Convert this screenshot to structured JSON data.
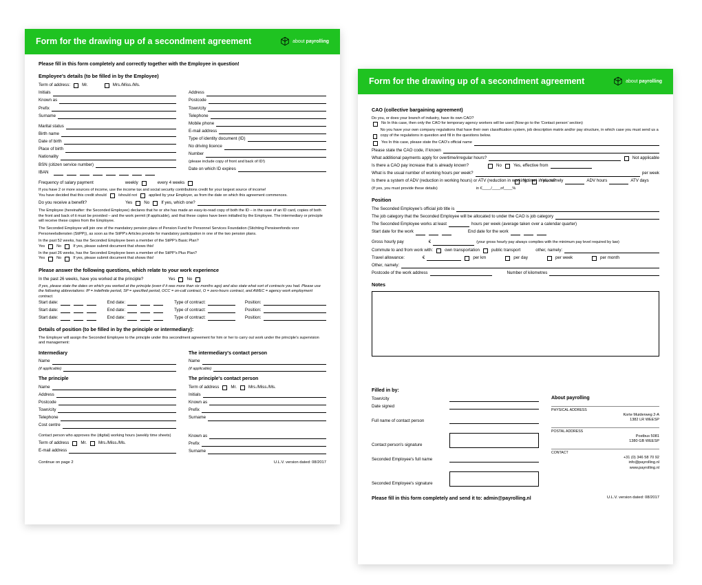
{
  "brand": {
    "prefix": "about",
    "name": "payrolling"
  },
  "form_title": "Form for the drawing up of a secondment agreement",
  "version": "U.L.V. version dated: 08/2017",
  "page1": {
    "instruction": "Please fill in this form completely and correctly together with the Employee in question!",
    "s1": {
      "heading": "Employee's details (to be filled in by the Employee)",
      "term_of_address": "Term of address:",
      "mr": "Mr.",
      "mrs": "Mrs./Miss./Ms.",
      "left": [
        "Initials",
        "Known as",
        "Prefix",
        "Surname",
        "",
        "Marital status",
        "Birth name",
        "Date of birth",
        "Place of birth",
        "Nationality",
        "BSN (citizen service number)",
        "IBAN"
      ],
      "right": [
        "Address",
        "Postcode",
        "Town/city",
        "Telephone",
        "Mobile phone",
        "E-mail address",
        "Type of identity document (ID)",
        "No driving licence",
        "Number",
        "(please include copy of front and back of ID!)",
        "Date on which ID expires"
      ],
      "freq": "Frequency of salary payment",
      "weekly": "weekly",
      "every4": "every 4 weeks",
      "p1": "If you have 2 or more sources of income, use the income tax and social security contributions credit for your largest source of income!",
      "p2a": "You have decided that this credit should",
      "p2b": "/should not",
      "p2c": "applied by your Employer, as from the date on which this agreement commences.",
      "benefit": "Do you receive a benefit?",
      "yes": "Yes",
      "no": "No",
      "ifyes": "If yes, which one?",
      "decl": "The Employee (hereinafter: the Seconded Employee) declares that he or she has made an easy-to-read copy of both the ID – in the case of an ID card, copies of both the front and back of it must be provided – and the work permit (if applicable), and that these copies have been initialled by the Employee. The intermediary or principle will receive these copies from the Employee.",
      "pension": "The Seconded Employee will join one of the mandatory pension plans of Pension Fund for Personnel Services Foundation (Stichting Pensioenfonds voor Personeelsdiensten (StiPP)), as soon as the StiPP's Articles provide for mandatory participation in one of the two pension plans.",
      "q52": "In the past 52 weeks, has the Seconded Employee been a member of the StiPP's Basic Plan?",
      "submit1": "If yes, please submit document that shows this!",
      "q26": "In the past 26 weeks, has the Seconded Employee been a member of the StiPP's Plus Plan?",
      "submit2": "If yes, please submit document that shows this!"
    },
    "s2": {
      "heading": "Please answer the following questions, which relate to your work experience",
      "q": "In the past 26 weeks, have you worked at the principle?",
      "note": "If yes, please state the dates on which you worked at the principle (even if it was more than six months ago) and also state what sort of contracts you had. Please use the following abbreviations: IP = indefinite period, SP = specified period, OCC = on-call contract, O = zero-hours contract, and AWEC = agency work employment contract.",
      "start": "Start date:",
      "end": "End date:",
      "type": "Type of contract:",
      "pos": "Position:"
    },
    "s3": {
      "heading": "Details of position (to be filled in by the principle or intermediary):",
      "intro": "The Employer will assign the Seconded Employee to the principle under this secondment agreement for him or her to carry out work under the principle's supervision and management:",
      "intermediary": "Intermediary",
      "contact_i": "The intermediary's contact person",
      "principle": "The principle",
      "contact_p": "The principle's contact person",
      "name": "Name",
      "ifapp": "(if applicable)",
      "address": "Address",
      "postcode": "Postcode",
      "town": "Town/city",
      "telephone": "Telephone",
      "cost": "Cost centre",
      "term": "Term of address",
      "initials": "Initials",
      "known": "Known as",
      "prefix": "Prefix",
      "surname": "Surname",
      "approver": "Contact person who approves the (digital) working hours (weekly time sheets)",
      "email": "E-mail address",
      "cont": "Continue on page 2"
    }
  },
  "page2": {
    "cao": {
      "heading": "CAO (collective bargaining agreement)",
      "q": "Do you, or does your branch of industry, have its own CAO?",
      "no1": "No   In this case, then only the CAO for temporary agency workers will be used (Now go to the 'Contact person' section)",
      "no2": "No   you have your own company regulations that have their own classification system, job description matrix and/or pay structure, in which case you must send us a copy of the regulations in question and fill in the questions below.",
      "yes1": "Yes  In this case, please state the CAO's official name",
      "code": "Please state the CAO code, if known",
      "addl": "What additional payments apply for overtime/irregular hours?",
      "na": "Not applicable",
      "payinc": "Is there a CAO pay increase that is already known?",
      "eff": "Yes, effective from",
      "usual": "What is the usual number of working hours per week?",
      "perweek": "per week",
      "adv": "Is there a system of ADV (reduction in working hours) or ATV (reduction in working time) in place?",
      "namely": "Yes, namely",
      "advh": "ADV hours",
      "atvd": "ATV days",
      "detail": "(If yes, you must provide these details)",
      "inof": "in €____/____of____%"
    },
    "pos": {
      "heading": "Position",
      "p1": "The Seconded Employee's official job title is",
      "p2": "The job category that the Seconded Employee will be allocated to under the CAO is job category",
      "p3a": "The Seconded Employee works at least",
      "p3b": "hours per week (average taken over a calendar quarter)",
      "start": "Start date for the work",
      "end": "End date for the work",
      "gross": "Gross hourly pay",
      "eur": "€",
      "grossnote": "(your gross hourly pay always complies with the minimum pay level required by law)",
      "commute": "Commute to and from work with:",
      "own": "own transportation",
      "pub": "public transport",
      "othern": "other, namely:",
      "travel": "Travel allowance:",
      "perkm": "per km",
      "perday": "per day",
      "perweekc": "per week",
      "permonth": "per month",
      "other": "Other, namely:",
      "postwork": "Postcode of the work address",
      "numkm": "Number of kilometres"
    },
    "notes": "Notes",
    "filled": {
      "heading": "Filled in by:",
      "town": "Town/city",
      "date": "Date signed",
      "fullname": "Full name of contact person",
      "csig": "Contact person's signature",
      "empname": "Seconded Employee's full name",
      "empsig": "Seconded Employee's signature"
    },
    "about": {
      "heading": "About payrolling",
      "phys": "PHYSICAL ADDRESS",
      "a1": "Korte Muiderweg 2-A",
      "a2": "1382 LR  WEESP",
      "post": "POSTAL ADDRESS",
      "b1": "Postbus 5081",
      "b2": "1380 GB  WEESP",
      "contact": "CONTACT",
      "c1": "+31 (0) 346 58 70 92",
      "c2": "info@payrolling.nl",
      "c3": "www.payrolling.nl"
    },
    "final": "Please fill in this form completely and send it to: admin@payrolling.nl"
  }
}
